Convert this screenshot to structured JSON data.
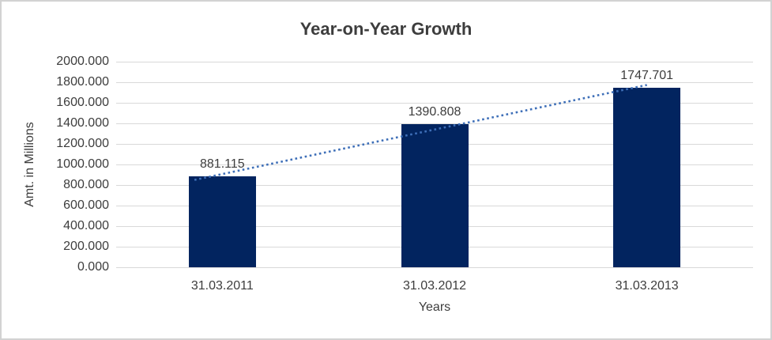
{
  "frame": {
    "background": "#ffffff",
    "border_color": "#d2d2d2"
  },
  "chart_data": {
    "type": "bar",
    "title": "Year-on-Year Growth",
    "xlabel": "Years",
    "ylabel": "Amt. in Millions",
    "categories": [
      "31.03.2011",
      "31.03.2012",
      "31.03.2013"
    ],
    "values": [
      881.115,
      1390.808,
      1747.701
    ],
    "data_labels": [
      "881.115",
      "1390.808",
      "1747.701"
    ],
    "ylim": [
      0,
      2000
    ],
    "ytick_step": 200,
    "ytick_labels": [
      "0.000",
      "200.000",
      "400.000",
      "600.000",
      "800.000",
      "1000.000",
      "1200.000",
      "1400.000",
      "1600.000",
      "1800.000",
      "2000.000"
    ],
    "grid": true,
    "legend_position": "none",
    "trendline": {
      "type": "linear",
      "style": "dotted",
      "color": "#3E6FB8"
    },
    "colors": {
      "bar": "#02245F",
      "gridline": "#D9D9D9",
      "text": "#3D3D3D",
      "title": "#3D3D3D"
    }
  }
}
